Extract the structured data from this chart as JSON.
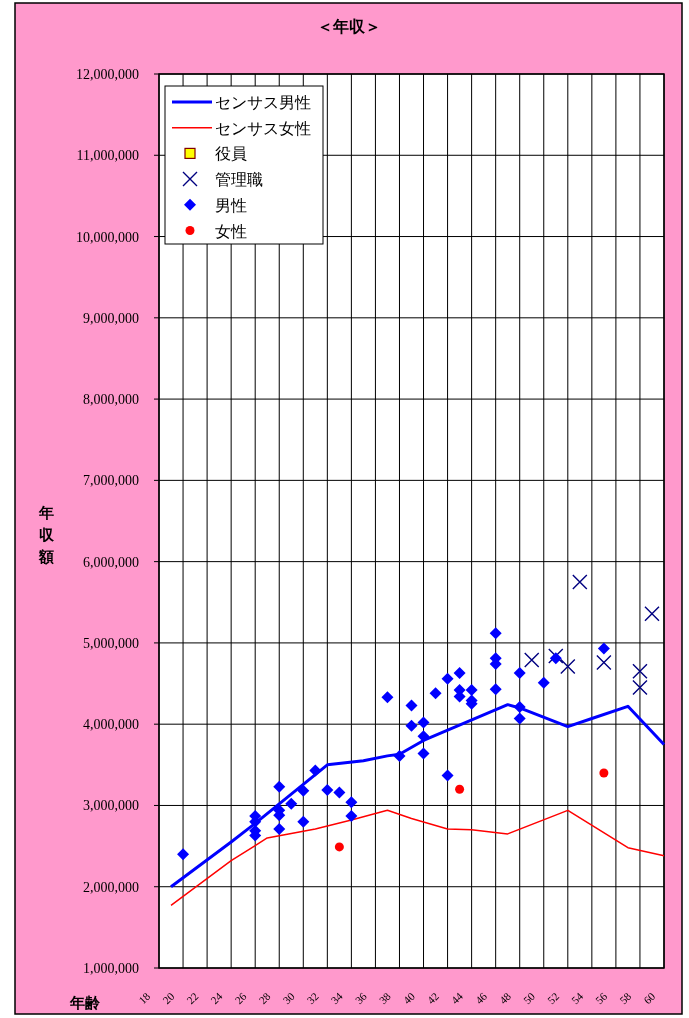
{
  "chart_data": {
    "type": "scatter",
    "title": "＜年収＞",
    "xlabel": "年齢",
    "ylabel": "年収額",
    "xlim": [
      18,
      60
    ],
    "xticks": [
      18,
      20,
      22,
      24,
      26,
      28,
      30,
      32,
      34,
      36,
      38,
      40,
      42,
      44,
      46,
      48,
      50,
      52,
      54,
      56,
      58,
      60
    ],
    "ylim": [
      1000000,
      12000000
    ],
    "yticks": [
      {
        "value": 1000000,
        "label": "1,000,000"
      },
      {
        "value": 2000000,
        "label": "2,000,000"
      },
      {
        "value": 3000000,
        "label": "3,000,000"
      },
      {
        "value": 4000000,
        "label": "4,000,000"
      },
      {
        "value": 5000000,
        "label": "5,000,000"
      },
      {
        "value": 6000000,
        "label": "6,000,000"
      },
      {
        "value": 7000000,
        "label": "7,000,000"
      },
      {
        "value": 8000000,
        "label": "8,000,000"
      },
      {
        "value": 9000000,
        "label": "9,000,000"
      },
      {
        "value": 10000000,
        "label": "10,000,000"
      },
      {
        "value": 11000000,
        "label": "11,000,000"
      },
      {
        "value": 12000000,
        "label": "12,000,000"
      }
    ],
    "grid": true,
    "legend": "top left",
    "series": [
      {
        "name": "センサス男性",
        "type": "line",
        "marker": "none",
        "color": "#0000ff",
        "x": [
          19,
          24,
          26,
          32,
          35,
          37,
          38,
          40,
          47,
          48,
          52,
          54,
          57,
          60
        ],
        "values": [
          2000000,
          2550000,
          2780000,
          3500000,
          3550000,
          3610000,
          3630000,
          3800000,
          4240000,
          4200000,
          3970000,
          4070000,
          4220000,
          3750000
        ]
      },
      {
        "name": "センサス女性",
        "type": "line",
        "marker": "none",
        "color": "#ff0000",
        "x": [
          19,
          24,
          27,
          31,
          34,
          37,
          39,
          42,
          44,
          47,
          52,
          57,
          60
        ],
        "values": [
          1770000,
          2320000,
          2600000,
          2710000,
          2820000,
          2940000,
          2840000,
          2710000,
          2700000,
          2650000,
          2940000,
          2480000,
          2380000
        ]
      },
      {
        "name": "役員",
        "marker": "square",
        "color": "#ffff00"
      },
      {
        "name": "管理職",
        "marker": "cross",
        "color": "#000080",
        "x": [
          49,
          51,
          52,
          53,
          55,
          58,
          58,
          59
        ],
        "values": [
          4790000,
          4840000,
          4710000,
          5750000,
          4760000,
          4650000,
          4450000,
          5360000
        ]
      },
      {
        "name": "男性",
        "marker": "diamond",
        "color": "#0000ff",
        "x": [
          20,
          26,
          26,
          26,
          26,
          28,
          28,
          28,
          28,
          29,
          30,
          30,
          31,
          32,
          33,
          34,
          34,
          37,
          38,
          39,
          39,
          40,
          40,
          40,
          41,
          42,
          42,
          43,
          43,
          43,
          44,
          44,
          44,
          46,
          46,
          46,
          46,
          48,
          48,
          48,
          50,
          51,
          55
        ],
        "values": [
          2400000,
          2870000,
          2800000,
          2690000,
          2630000,
          3230000,
          2940000,
          2880000,
          2710000,
          3020000,
          3180000,
          2800000,
          3430000,
          3190000,
          3160000,
          3040000,
          2870000,
          4330000,
          3610000,
          4230000,
          3980000,
          4020000,
          3850000,
          3640000,
          4380000,
          4560000,
          3370000,
          4630000,
          4420000,
          4340000,
          4420000,
          4290000,
          4250000,
          5120000,
          4810000,
          4740000,
          4430000,
          4630000,
          4210000,
          4070000,
          4510000,
          4810000,
          4930000
        ]
      },
      {
        "name": "女性",
        "marker": "circle",
        "color": "#ff0000",
        "x": [
          33,
          43,
          55
        ],
        "values": [
          2490000,
          3200000,
          3400000
        ]
      }
    ]
  }
}
